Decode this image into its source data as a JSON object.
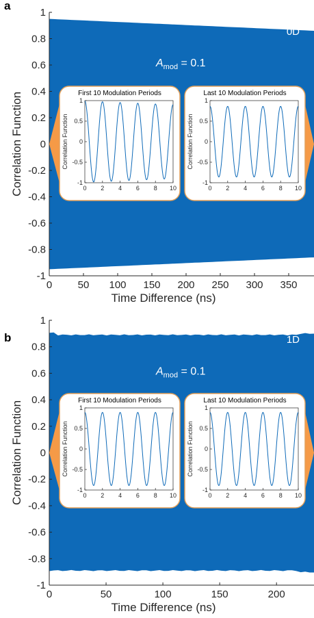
{
  "colors": {
    "signal": "#0e6ab8",
    "inset_border": "#e3a05a",
    "arrow": "#f59a47",
    "axis": "#262626"
  },
  "chart_data": [
    {
      "panel": "a",
      "type": "area",
      "series_label": "0D",
      "annotation": {
        "symbol": "A",
        "subscript": "mod",
        "rest": " = 0.1"
      },
      "xlabel": "Time Difference (ns)",
      "ylabel": "Correlation Function",
      "xlim": [
        0,
        387
      ],
      "ylim": [
        -1,
        1
      ],
      "xticks": [
        0,
        50,
        100,
        150,
        200,
        250,
        300,
        350
      ],
      "yticks": [
        1,
        0.8,
        0.6,
        0.4,
        0.2,
        0,
        -0.2,
        -0.4,
        -0.6,
        -0.8,
        -1
      ],
      "envelope": {
        "x": [
          0,
          387
        ],
        "upper": [
          0.95,
          0.86
        ],
        "lower": [
          -0.95,
          -0.86
        ]
      },
      "insets": [
        {
          "title": "First 10 Modulation Periods",
          "ylabel": "Correlation Function",
          "xlim": [
            0,
            10
          ],
          "ylim": [
            -1,
            1
          ],
          "xticks": [
            0,
            2,
            4,
            6,
            8,
            10
          ],
          "yticks": [
            1,
            0.5,
            0,
            -0.5,
            -1
          ],
          "period": 2,
          "amplitude_start": 0.99,
          "amplitude_end": 0.9
        },
        {
          "title": "Last 10 Modulation Periods",
          "ylabel": "Correlation Function",
          "xlim": [
            0,
            10
          ],
          "ylim": [
            -1,
            1
          ],
          "xticks": [
            0,
            2,
            4,
            6,
            8,
            10
          ],
          "yticks": [
            1,
            0.5,
            0,
            -0.5,
            -1
          ],
          "period": 2,
          "amplitude_start": 0.86,
          "amplitude_end": 0.86
        }
      ]
    },
    {
      "panel": "b",
      "type": "area",
      "series_label": "1D",
      "annotation": {
        "symbol": "A",
        "subscript": "mod",
        "rest": " = 0.1"
      },
      "xlabel": "Time Difference (ns)",
      "ylabel": "Correlation Function",
      "xlim": [
        0,
        233
      ],
      "ylim": [
        -1,
        1
      ],
      "xticks": [
        0,
        50,
        100,
        150,
        200
      ],
      "yticks": [
        1,
        0.8,
        0.6,
        0.4,
        0.2,
        0,
        -0.2,
        -0.4,
        -0.6,
        -0.8,
        -1
      ],
      "envelope": {
        "x": [
          0,
          233
        ],
        "upper": [
          0.89,
          0.89
        ],
        "lower": [
          -0.89,
          -0.89
        ]
      },
      "insets": [
        {
          "title": "First 10 Modulation Periods",
          "ylabel": "Correlation Function",
          "xlim": [
            0,
            10
          ],
          "ylim": [
            -1,
            1
          ],
          "xticks": [
            0,
            2,
            4,
            6,
            8,
            10
          ],
          "yticks": [
            1,
            0.5,
            0,
            -0.5,
            -1
          ],
          "period": 2,
          "amplitude_start": 0.89,
          "amplitude_end": 0.89
        },
        {
          "title": "Last 10 Modulation Periods",
          "ylabel": "Correlation Function",
          "xlim": [
            0,
            10
          ],
          "ylim": [
            -1,
            1
          ],
          "xticks": [
            0,
            2,
            4,
            6,
            8,
            10
          ],
          "yticks": [
            1,
            0.5,
            0,
            -0.5,
            -1
          ],
          "period": 2,
          "amplitude_start": 0.89,
          "amplitude_end": 0.89
        }
      ]
    }
  ]
}
